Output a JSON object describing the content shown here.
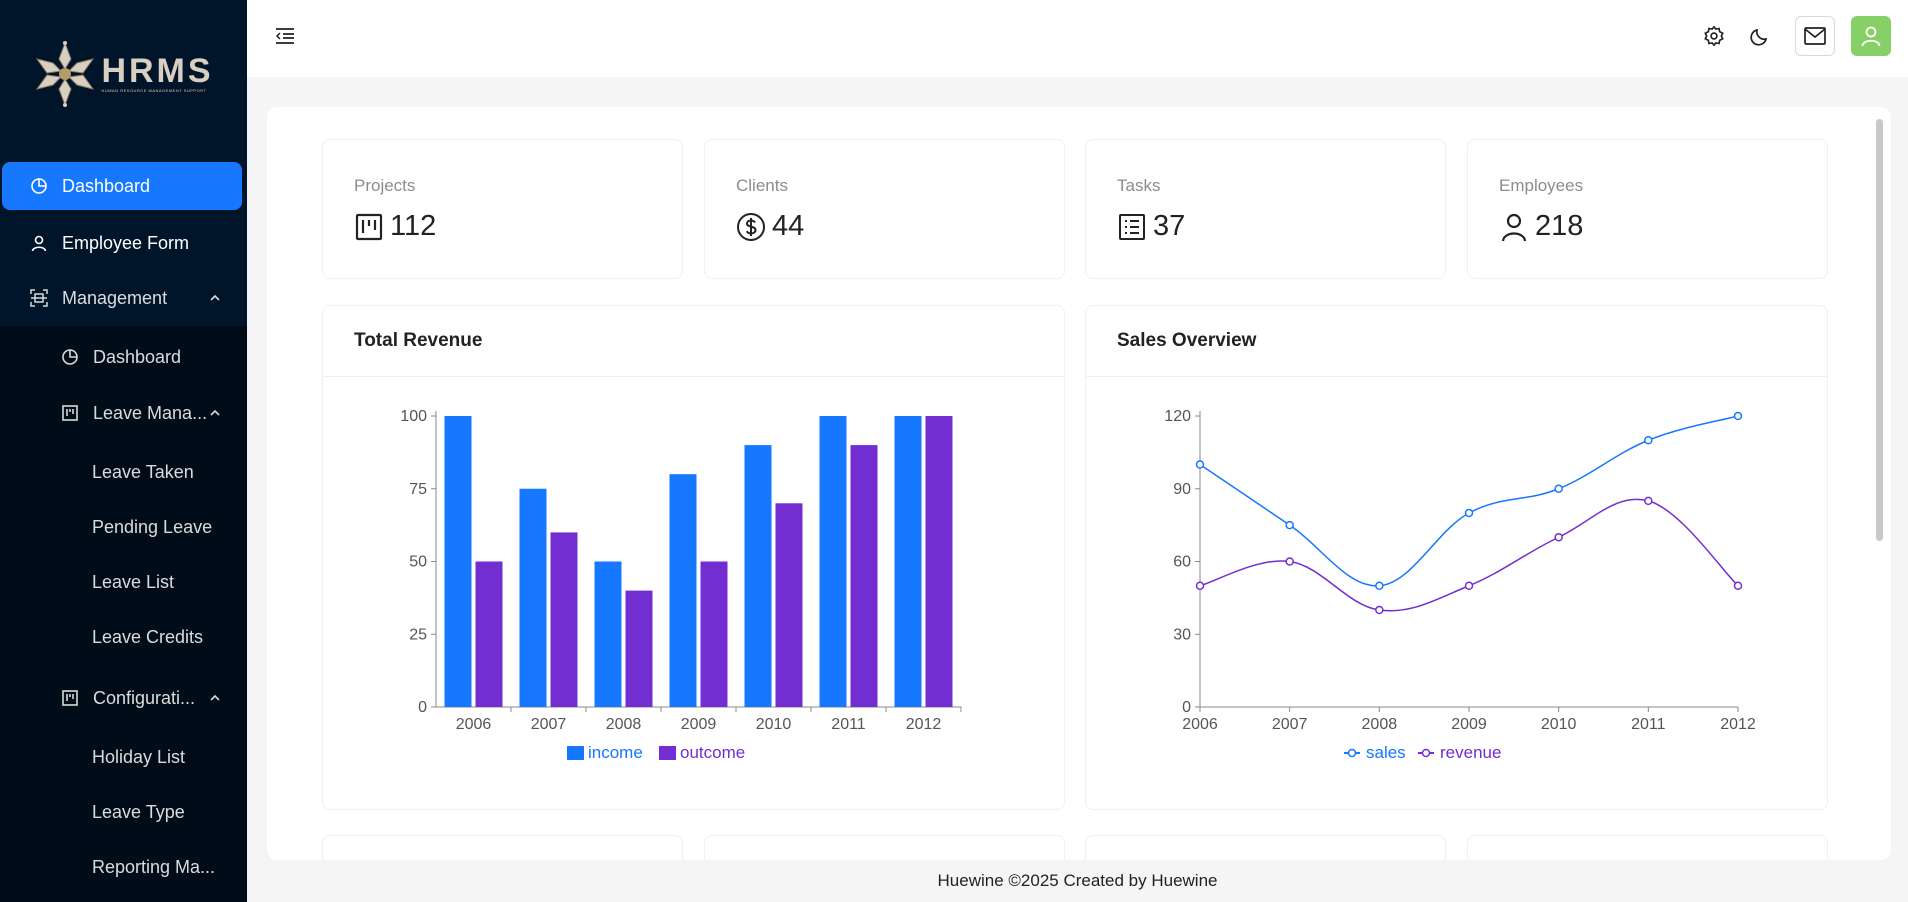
{
  "app": {
    "logo_text": "HRMS",
    "logo_subtitle": "HUMAN RESOURCE MANAGEMENT SUPPORT"
  },
  "sidebar": {
    "items": [
      {
        "label": "Dashboard",
        "icon": "pie-chart-icon",
        "level": 1,
        "active": true
      },
      {
        "label": "Employee Form",
        "icon": "user-icon",
        "level": 1
      },
      {
        "label": "Management",
        "icon": "scan-icon",
        "level": 1,
        "expanded": true
      },
      {
        "label": "Dashboard",
        "icon": "pie-chart-icon",
        "level": 2
      },
      {
        "label": "Leave Mana...",
        "icon": "project-icon",
        "level": 2,
        "expanded": true
      },
      {
        "label": "Leave Taken",
        "level": 3
      },
      {
        "label": "Pending Leave",
        "level": 3
      },
      {
        "label": "Leave List",
        "level": 3
      },
      {
        "label": "Leave Credits",
        "level": 3
      },
      {
        "label": "Configurati...",
        "icon": "project-icon",
        "level": 2,
        "expanded": true
      },
      {
        "label": "Holiday List",
        "level": 3
      },
      {
        "label": "Leave Type",
        "level": 3
      },
      {
        "label": "Reporting Ma...",
        "level": 3
      }
    ]
  },
  "header": {
    "menu_fold_icon": "menu-fold-icon",
    "settings_icon": "gear-icon",
    "theme_icon": "moon-icon",
    "mail_icon": "mail-icon",
    "avatar_icon": "user-icon",
    "avatar_color": "#87d068"
  },
  "stats": [
    {
      "title": "Projects",
      "value": "112",
      "icon": "project-icon"
    },
    {
      "title": "Clients",
      "value": "44",
      "icon": "dollar-icon"
    },
    {
      "title": "Tasks",
      "value": "37",
      "icon": "list-icon"
    },
    {
      "title": "Employees",
      "value": "218",
      "icon": "user-icon"
    }
  ],
  "charts": {
    "revenue_title": "Total Revenue",
    "sales_title": "Sales Overview"
  },
  "chart_data": [
    {
      "type": "bar",
      "title": "Total Revenue",
      "categories": [
        "2006",
        "2007",
        "2008",
        "2009",
        "2010",
        "2011",
        "2012"
      ],
      "series": [
        {
          "name": "income",
          "values": [
            100,
            75,
            50,
            80,
            90,
            100,
            100
          ],
          "color": "#1677ff"
        },
        {
          "name": "outcome",
          "values": [
            50,
            60,
            40,
            50,
            70,
            90,
            100
          ],
          "color": "#722ed1"
        }
      ],
      "ylim": [
        0,
        100
      ],
      "yticks": [
        0,
        25,
        50,
        75,
        100
      ],
      "legend": "bottom-center"
    },
    {
      "type": "line",
      "title": "Sales Overview",
      "categories": [
        "2006",
        "2007",
        "2008",
        "2009",
        "2010",
        "2011",
        "2012"
      ],
      "series": [
        {
          "name": "sales",
          "values": [
            100,
            75,
            50,
            80,
            90,
            110,
            120
          ],
          "color": "#1677ff"
        },
        {
          "name": "revenue",
          "values": [
            50,
            60,
            40,
            50,
            70,
            85,
            50
          ],
          "color": "#722ed1"
        }
      ],
      "ylim": [
        0,
        120
      ],
      "yticks": [
        0,
        30,
        60,
        90,
        120
      ],
      "smooth": true,
      "legend": "bottom-center"
    }
  ],
  "footer": {
    "text": "Huewine ©2025 Created by Huewine"
  }
}
